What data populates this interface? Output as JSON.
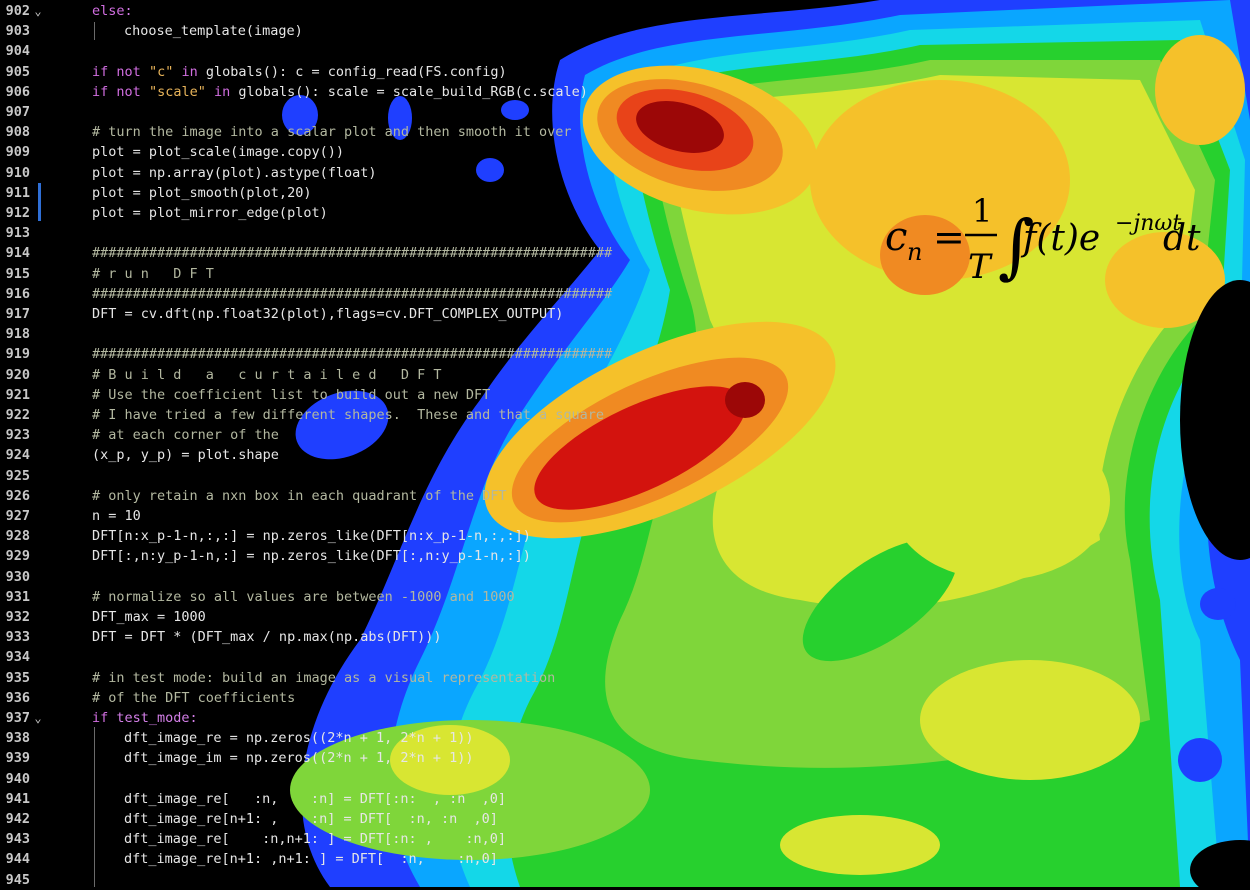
{
  "colors": {
    "background": "#000000",
    "contour_levels": [
      "#000000",
      "#1f3fff",
      "#0aa6ff",
      "#14d7e8",
      "#27d02e",
      "#7fd63a",
      "#d8e632",
      "#f5c12a",
      "#f08a22",
      "#e84319",
      "#d3130e",
      "#9c0707"
    ],
    "keyword": "#d16ee0",
    "string": "#e8b45a",
    "comment": "#9ca08c",
    "line_number": "#c8c8c8"
  },
  "editor": {
    "lines": [
      {
        "num": "902",
        "fold": "chevron-down",
        "indent": 0,
        "text": "else:",
        "style": "control"
      },
      {
        "num": "903",
        "fold": "",
        "indent": 1,
        "text": "choose_template(image)",
        "style": "normal"
      },
      {
        "num": "904",
        "fold": "",
        "indent": 0,
        "text": "",
        "style": "normal"
      },
      {
        "num": "905",
        "fold": "",
        "indent": 0,
        "text": "if not \"c\" in globals(): c = config_read(FS.config)",
        "style": "normal"
      },
      {
        "num": "906",
        "fold": "",
        "indent": 0,
        "text": "if not \"scale\" in globals(): scale = scale_build_RGB(c.scale)",
        "style": "normal"
      },
      {
        "num": "907",
        "fold": "",
        "indent": 0,
        "text": "",
        "style": "normal"
      },
      {
        "num": "908",
        "fold": "",
        "indent": 0,
        "text": "# turn the image into a scalar plot and then smooth it over",
        "style": "comment"
      },
      {
        "num": "909",
        "fold": "",
        "indent": 0,
        "text": "plot = plot_scale(image.copy())",
        "style": "normal"
      },
      {
        "num": "910",
        "fold": "",
        "indent": 0,
        "text": "plot = np.array(plot).astype(float)",
        "style": "normal"
      },
      {
        "num": "911",
        "fold": "",
        "indent": 0,
        "text": "plot = plot_smooth(plot,20)",
        "style": "normal"
      },
      {
        "num": "912",
        "fold": "",
        "indent": 0,
        "text": "plot = plot_mirror_edge(plot)",
        "style": "normal"
      },
      {
        "num": "913",
        "fold": "",
        "indent": 0,
        "text": "",
        "style": "normal"
      },
      {
        "num": "914",
        "fold": "",
        "indent": 0,
        "text": "################################################################",
        "style": "comment"
      },
      {
        "num": "915",
        "fold": "",
        "indent": 0,
        "text": "# r u n   D F T",
        "style": "comment"
      },
      {
        "num": "916",
        "fold": "",
        "indent": 0,
        "text": "################################################################",
        "style": "comment"
      },
      {
        "num": "917",
        "fold": "",
        "indent": 0,
        "text": "DFT = cv.dft(np.float32(plot),flags=cv.DFT_COMPLEX_OUTPUT)",
        "style": "normal"
      },
      {
        "num": "918",
        "fold": "",
        "indent": 0,
        "text": "",
        "style": "normal"
      },
      {
        "num": "919",
        "fold": "",
        "indent": 0,
        "text": "################################################################",
        "style": "comment"
      },
      {
        "num": "920",
        "fold": "",
        "indent": 0,
        "text": "# B u i l d   a   c u r t a i l e d   D F T",
        "style": "comment"
      },
      {
        "num": "921",
        "fold": "",
        "indent": 0,
        "text": "# Use the coefficient list to build out a new DFT",
        "style": "comment"
      },
      {
        "num": "922",
        "fold": "",
        "indent": 0,
        "text": "# I have tried a few different shapes.  These and that a square",
        "style": "comment"
      },
      {
        "num": "923",
        "fold": "",
        "indent": 0,
        "text": "# at each corner of the",
        "style": "comment"
      },
      {
        "num": "924",
        "fold": "",
        "indent": 0,
        "text": "(x_p, y_p) = plot.shape",
        "style": "normal"
      },
      {
        "num": "925",
        "fold": "",
        "indent": 0,
        "text": "",
        "style": "normal"
      },
      {
        "num": "926",
        "fold": "",
        "indent": 0,
        "text": "# only retain a nxn box in each quadrant of the DFT",
        "style": "comment"
      },
      {
        "num": "927",
        "fold": "",
        "indent": 0,
        "text": "n = 10",
        "style": "normal"
      },
      {
        "num": "928",
        "fold": "",
        "indent": 0,
        "text": "DFT[n:x_p-1-n,:,:] = np.zeros_like(DFT[n:x_p-1-n,:,:])",
        "style": "normal"
      },
      {
        "num": "929",
        "fold": "",
        "indent": 0,
        "text": "DFT[:,n:y_p-1-n,:] = np.zeros_like(DFT[:,n:y_p-1-n,:])",
        "style": "normal"
      },
      {
        "num": "930",
        "fold": "",
        "indent": 0,
        "text": "",
        "style": "normal"
      },
      {
        "num": "931",
        "fold": "",
        "indent": 0,
        "text": "# normalize so all values are between -1000 and 1000",
        "style": "comment"
      },
      {
        "num": "932",
        "fold": "",
        "indent": 0,
        "text": "DFT_max = 1000",
        "style": "normal"
      },
      {
        "num": "933",
        "fold": "",
        "indent": 0,
        "text": "DFT = DFT * (DFT_max / np.max(np.abs(DFT)))",
        "style": "normal"
      },
      {
        "num": "934",
        "fold": "",
        "indent": 0,
        "text": "",
        "style": "normal"
      },
      {
        "num": "935",
        "fold": "",
        "indent": 0,
        "text": "# in test mode: build an image as a visual representation",
        "style": "comment"
      },
      {
        "num": "936",
        "fold": "",
        "indent": 0,
        "text": "# of the DFT coefficients",
        "style": "comment"
      },
      {
        "num": "937",
        "fold": "chevron-down",
        "indent": 0,
        "text": "if test_mode:",
        "style": "control"
      },
      {
        "num": "938",
        "fold": "",
        "indent": 1,
        "text": "dft_image_re = np.zeros((2*n + 1, 2*n + 1))",
        "style": "normal"
      },
      {
        "num": "939",
        "fold": "",
        "indent": 1,
        "text": "dft_image_im = np.zeros((2*n + 1, 2*n + 1))",
        "style": "normal"
      },
      {
        "num": "940",
        "fold": "",
        "indent": 1,
        "text": "",
        "style": "normal"
      },
      {
        "num": "941",
        "fold": "",
        "indent": 1,
        "text": "dft_image_re[   :n,    :n] = DFT[:n:  , :n  ,0]",
        "style": "normal"
      },
      {
        "num": "942",
        "fold": "",
        "indent": 1,
        "text": "dft_image_re[n+1: ,    :n] = DFT[  :n, :n  ,0]",
        "style": "normal"
      },
      {
        "num": "943",
        "fold": "",
        "indent": 1,
        "text": "dft_image_re[    :n,n+1: ] = DFT[:n: ,    :n,0]",
        "style": "normal"
      },
      {
        "num": "944",
        "fold": "",
        "indent": 1,
        "text": "dft_image_re[n+1: ,n+1: ] = DFT[  :n,    :n,0]",
        "style": "normal"
      },
      {
        "num": "945",
        "fold": "",
        "indent": 1,
        "text": "",
        "style": "normal"
      }
    ]
  },
  "formula": {
    "lhs": "c",
    "lhs_sub": "n",
    "eq": "=",
    "num": "1",
    "den": "T",
    "integral": "∫",
    "body": "f(t)e",
    "exp": "−jnωt",
    "dt": "dt"
  }
}
